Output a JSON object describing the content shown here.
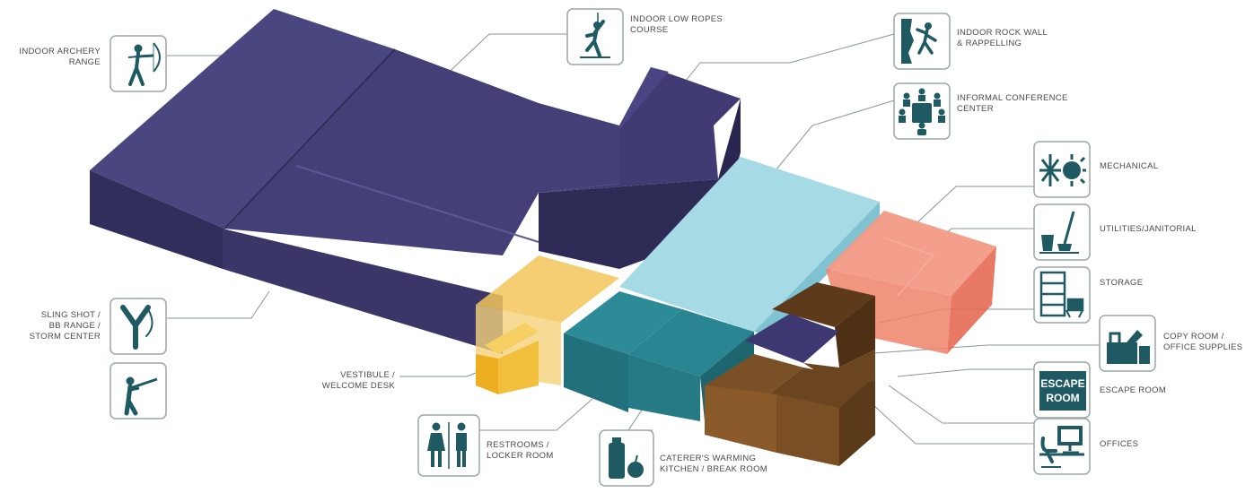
{
  "colors": {
    "purple": "#3f3a6b",
    "cyan": "#9fd6e2",
    "teal": "#237d8a",
    "yellow": "#f0b93a",
    "salmon": "#ec7a64",
    "brown": "#6b4523",
    "icon": "#1f5a63",
    "line": "#7f8a8c"
  },
  "labels": {
    "archery": [
      "INDOOR ARCHERY",
      "RANGE"
    ],
    "ropes": [
      "INDOOR LOW ROPES",
      "COURSE"
    ],
    "rockwall": [
      "INDOOR ROCK WALL",
      "& RAPPELLING"
    ],
    "conference": [
      "INFORMAL CONFERENCE",
      "CENTER"
    ],
    "mechanical": [
      "MECHANICAL"
    ],
    "utilities": [
      "UTILITIES/JANITORIAL"
    ],
    "storage": [
      "STORAGE"
    ],
    "copy": [
      "COPY ROOM /",
      "OFFICE SUPPLIES"
    ],
    "escape": [
      "ESCAPE ROOM"
    ],
    "offices": [
      "OFFICES"
    ],
    "slingshot": [
      "SLING SHOT /",
      "BB RANGE /",
      "STORM CENTER"
    ],
    "vestibule": [
      "VESTIBULE /",
      "WELCOME DESK"
    ],
    "restrooms": [
      "RESTROOMS /",
      "LOCKER ROOM"
    ],
    "caterer": [
      "CATERER'S WARMING",
      "KITCHEN / BREAK ROOM"
    ]
  },
  "icons": {
    "archery": "archer-icon",
    "ropes": "climber-icon",
    "rockwall": "rock-wall-icon",
    "conference": "meeting-icon",
    "mechanical": "snowflake-sun-icon",
    "utilities": "mop-bucket-icon",
    "storage": "shelving-icon",
    "copy": "copier-icon",
    "escape": "escape-room-icon",
    "offices": "desk-computer-icon",
    "slingshot": "slingshot-icon",
    "rifle": "rifle-shooter-icon",
    "restrooms": "restroom-icon",
    "caterer": "kitchen-icon"
  },
  "escape_icon_text": [
    "ESCAPE",
    "ROOM"
  ]
}
